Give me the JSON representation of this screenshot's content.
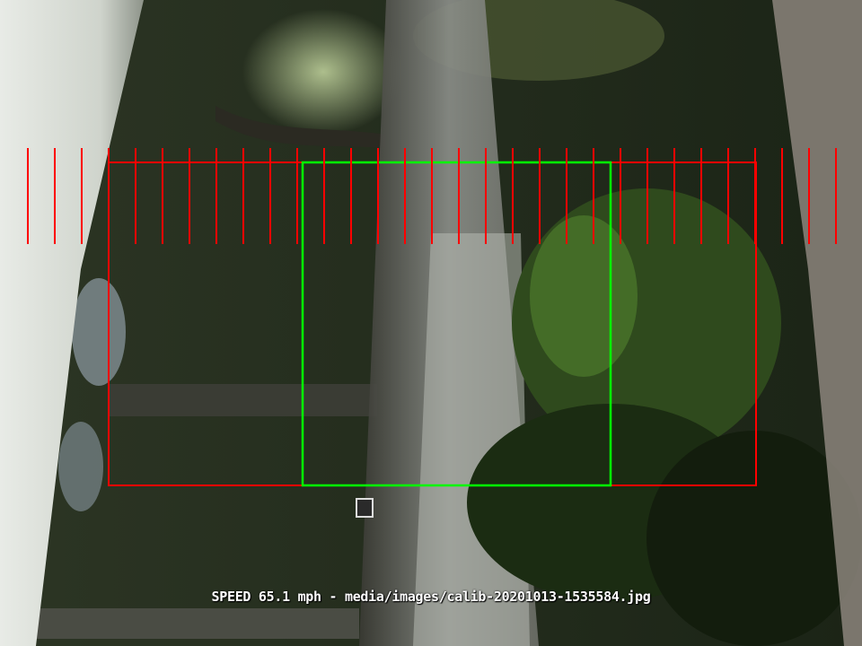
{
  "speed_overlay": {
    "label": "SPEED",
    "value": "65.1",
    "unit": "mph",
    "separator": "-",
    "image_path": "media/images/calib-20201013-1535584.jpg"
  },
  "colors": {
    "calibration_box": "#ff0000",
    "calibration_ticks": "#ff0000",
    "detection_box": "#00ff00",
    "caption_text": "#ffffff"
  },
  "calibration": {
    "tick_count": 31
  },
  "scene_description_icon": "street-camera-view"
}
